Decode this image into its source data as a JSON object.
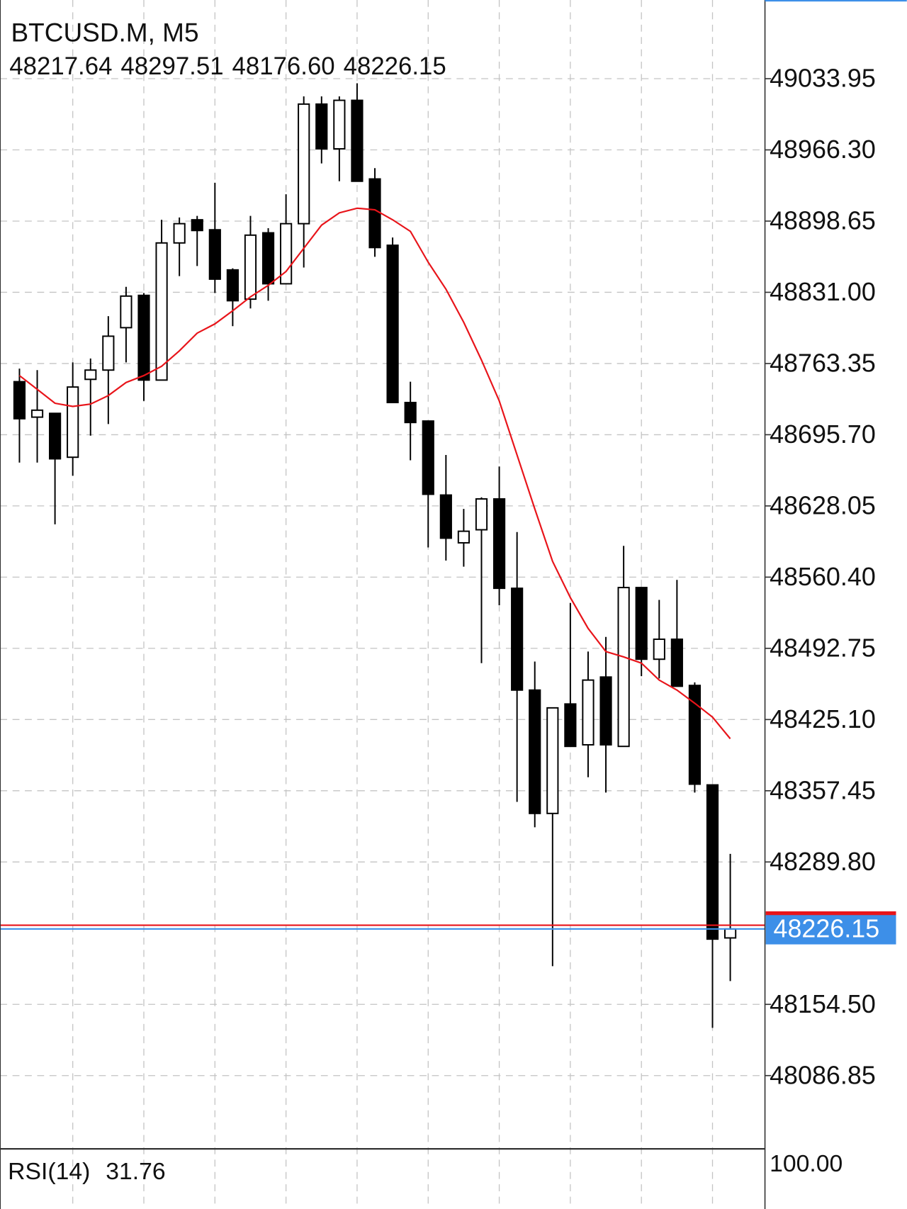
{
  "chart_data": {
    "type": "candlestick",
    "title": "BTCUSD.M, M5",
    "last_labels": [
      "48217.64",
      "48297.51",
      "48176.60",
      "48226.15"
    ],
    "open": [
      48746.1,
      48712.4,
      48716.0,
      48674.3,
      48748.3,
      48757.1,
      48797.4,
      48828.1,
      48747.6,
      48877.9,
      48899.9,
      48890.4,
      48852.3,
      48824.5,
      48887.5,
      48839.1,
      48896.2,
      49009.8,
      48967.3,
      49013.4,
      48938.7,
      48875.7,
      48726.3,
      48708.7,
      48638.4,
      48593.0,
      48605.4,
      48634.7,
      48549.8,
      48453.1,
      48335.9,
      48439.9,
      48401.1,
      48465.5,
      48399.6,
      48550.5,
      48482.4,
      48501.4,
      48457.5,
      48363.0,
      48217.64
    ],
    "high": [
      48758.5,
      48757.1,
      48716.0,
      48764.4,
      48768.1,
      48808.3,
      48836.2,
      48830.3,
      48899.9,
      48902.1,
      48903.6,
      48935.1,
      48853.8,
      48903.6,
      48891.9,
      48924.1,
      49017.1,
      49017.1,
      49017.1,
      49029.6,
      48949.0,
      48883.1,
      48746.1,
      48708.7,
      48676.5,
      48625.2,
      48636.2,
      48665.5,
      48603.2,
      48480.2,
      48436.2,
      48535.9,
      48489.7,
      48503.6,
      48590.1,
      48550.5,
      48538.8,
      48557.8,
      48460.4,
      48363.0,
      48297.51
    ],
    "low": [
      48669.2,
      48669.2,
      48610.6,
      48656.7,
      48694.8,
      48705.8,
      48764.4,
      48727.8,
      48747.6,
      48846.4,
      48856.0,
      48830.3,
      48798.8,
      48815.7,
      48823.0,
      48839.1,
      48854.5,
      48953.4,
      48936.5,
      48936.5,
      48864.7,
      48726.3,
      48671.4,
      48588.6,
      48576.1,
      48570.3,
      48478.7,
      48533.7,
      48346.9,
      48322.7,
      48190.8,
      48399.6,
      48370.3,
      48355.7,
      48399.6,
      48466.3,
      48464.1,
      48456.7,
      48355.7,
      48132.2,
      48176.6
    ],
    "close": [
      48710.9,
      48719.0,
      48672.8,
      48741.0,
      48757.1,
      48789.3,
      48827.4,
      48747.6,
      48877.9,
      48896.2,
      48889.7,
      48843.5,
      48823.0,
      48885.3,
      48839.1,
      48896.2,
      49009.8,
      48967.3,
      49013.4,
      48936.5,
      48873.5,
      48726.3,
      48707.3,
      48639.1,
      48597.4,
      48604.0,
      48634.7,
      48549.8,
      48453.1,
      48335.9,
      48436.2,
      48399.6,
      48462.6,
      48401.1,
      48550.5,
      48482.4,
      48501.4,
      48456.7,
      48363.7,
      48216.5,
      48226.15
    ],
    "up_color": "#ffffff",
    "down_color": "#000000",
    "ma": {
      "color": "#e8141a",
      "values": [
        48751.9,
        48738.8,
        48725.6,
        48722.6,
        48724.8,
        48732.9,
        48745.3,
        48751.9,
        48760.7,
        48775.4,
        48792.2,
        48801.0,
        48813.5,
        48826.7,
        48837.6,
        48850.8,
        48872.8,
        48894.8,
        48906.5,
        48910.9,
        48909.4,
        48899.9,
        48888.9,
        48859.6,
        48834.0,
        48802.5,
        48766.6,
        48727.8,
        48676.5,
        48625.2,
        48575.4,
        48541.0,
        48511.7,
        48489.7,
        48484.6,
        48478.7,
        48462.6,
        48453.1,
        48440.6,
        48427.4,
        48406.9
      ]
    },
    "ask": 48229.7,
    "ask_color": "#e8141a",
    "bid_color": "#3d8fe8",
    "ylim": [
      48018.7,
      49108.7
    ],
    "yticks": [
      49033.95,
      {
        "value": 48966.3,
        "label": "48966.30"
      },
      48898.65,
      {
        "value": 48831.0,
        "label": "48831.00"
      },
      48763.35,
      {
        "value": 48695.7,
        "label": "48695.70"
      },
      48628.05,
      {
        "value": 48560.4,
        "label": "48560.40"
      },
      48492.75,
      {
        "value": 48425.1,
        "label": "48425.10"
      },
      48357.45,
      {
        "value": 48289.8,
        "label": "48289.80"
      },
      {
        "value": 48154.5,
        "label": "48154.50"
      },
      48086.85
    ],
    "grid": true,
    "rsi_label": "RSI(14)",
    "rsi_value": 31.76,
    "rsi_ticks": [
      {
        "value": 100,
        "label": "100.00"
      }
    ]
  }
}
